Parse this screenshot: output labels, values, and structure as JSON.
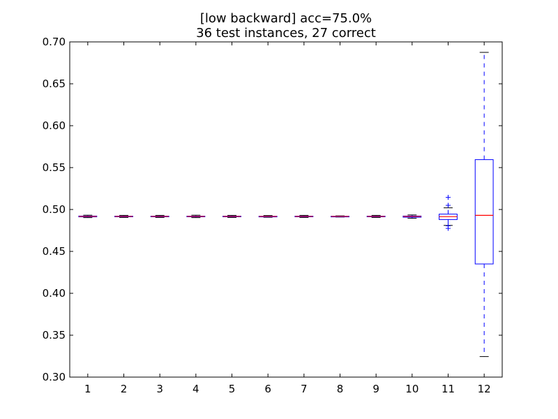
{
  "chart_data": {
    "type": "boxplot",
    "title": "[low backward] acc=75.0%",
    "subtitle": "36 test instances, 27 correct",
    "xlabel": "",
    "ylabel": "",
    "ylim": [
      0.3,
      0.7
    ],
    "yticks": [
      "0.30",
      "0.35",
      "0.40",
      "0.45",
      "0.50",
      "0.55",
      "0.60",
      "0.65",
      "0.70"
    ],
    "categories": [
      "1",
      "2",
      "3",
      "4",
      "5",
      "6",
      "7",
      "8",
      "9",
      "10",
      "11",
      "12"
    ],
    "boxes": [
      {
        "label": "1",
        "whisker_low": 0.4903,
        "q1": 0.4912,
        "median": 0.4917,
        "q3": 0.4922,
        "whisker_high": 0.4932,
        "outliers": []
      },
      {
        "label": "2",
        "whisker_low": 0.4905,
        "q1": 0.4913,
        "median": 0.4917,
        "q3": 0.4921,
        "whisker_high": 0.493,
        "outliers": []
      },
      {
        "label": "3",
        "whisker_low": 0.4905,
        "q1": 0.4913,
        "median": 0.4917,
        "q3": 0.4921,
        "whisker_high": 0.493,
        "outliers": []
      },
      {
        "label": "4",
        "whisker_low": 0.4903,
        "q1": 0.4913,
        "median": 0.4917,
        "q3": 0.4921,
        "whisker_high": 0.4932,
        "outliers": []
      },
      {
        "label": "5",
        "whisker_low": 0.4905,
        "q1": 0.4913,
        "median": 0.4917,
        "q3": 0.4921,
        "whisker_high": 0.493,
        "outliers": []
      },
      {
        "label": "6",
        "whisker_low": 0.4907,
        "q1": 0.4914,
        "median": 0.4917,
        "q3": 0.492,
        "whisker_high": 0.4928,
        "outliers": []
      },
      {
        "label": "7",
        "whisker_low": 0.4905,
        "q1": 0.4913,
        "median": 0.4917,
        "q3": 0.4921,
        "whisker_high": 0.493,
        "outliers": []
      },
      {
        "label": "8",
        "whisker_low": 0.491,
        "q1": 0.4914,
        "median": 0.4917,
        "q3": 0.492,
        "whisker_high": 0.4924,
        "outliers": []
      },
      {
        "label": "9",
        "whisker_low": 0.4905,
        "q1": 0.4913,
        "median": 0.4917,
        "q3": 0.4921,
        "whisker_high": 0.493,
        "outliers": []
      },
      {
        "label": "10",
        "whisker_low": 0.4895,
        "q1": 0.4908,
        "median": 0.4917,
        "q3": 0.4922,
        "whisker_high": 0.4935,
        "outliers": []
      },
      {
        "label": "11",
        "whisker_low": 0.481,
        "q1": 0.488,
        "median": 0.4915,
        "q3": 0.4945,
        "whisker_high": 0.502,
        "outliers": [
          0.4775,
          0.4805,
          0.505,
          0.5145
        ]
      },
      {
        "label": "12",
        "whisker_low": 0.3245,
        "q1": 0.435,
        "median": 0.493,
        "q3": 0.5595,
        "whisker_high": 0.6875,
        "outliers": []
      }
    ],
    "colors": {
      "box": "#0000ff",
      "median": "#ff0000",
      "whisker": "#0000ff",
      "cap": "#000000",
      "outlier": "#0000ff",
      "axes": "#000000"
    },
    "grid": false,
    "legend": "none"
  }
}
